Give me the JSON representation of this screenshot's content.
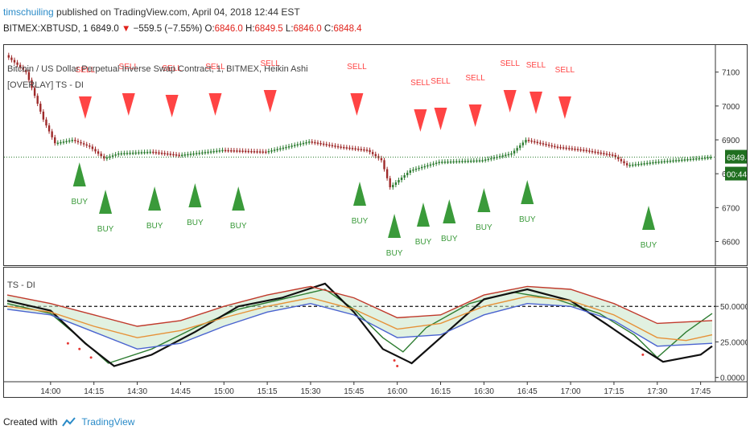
{
  "header": {
    "user": "timschuiling",
    "published": " published on TradingView.com, April 04, 2018 12:44 EST",
    "symbol": "BITMEX:XBTUSD, 1",
    "last": "6849.0",
    "change": "−559.5 (−7.55%)",
    "o_label": "O:",
    "o_val": "6846.0",
    "h_label": "H:",
    "h_val": "6849.5",
    "l_label": "L:",
    "l_val": "6846.0",
    "c_label": "C:",
    "c_val": "6848.4"
  },
  "pane1": {
    "title": "Bitcoin / US Dollar Perpetual Inverse Swap Contract, 1, BITMEX, Heikin Ashi",
    "overlay": "[OVERLAY] TS - DI",
    "price_tag": "6849.0",
    "timer_tag": "00:44"
  },
  "pane2": {
    "label": "TS - DI"
  },
  "footer": {
    "created": "Created with",
    "brand": "TradingView"
  },
  "colors": {
    "sell": "#ff4444",
    "buy": "#3a9a3a",
    "up": "#2e7d32",
    "down": "#9e2a2a"
  },
  "chart_data": [
    {
      "type": "candlestick",
      "x_ticks": [
        "14:00",
        "14:15",
        "14:30",
        "14:45",
        "15:00",
        "15:15",
        "15:30",
        "15:45",
        "16:00",
        "16:15",
        "16:30",
        "16:45",
        "17:00",
        "17:15",
        "17:30",
        "17:45"
      ],
      "y_ticks": [
        6600,
        6700,
        6800,
        6900,
        7000,
        7100
      ],
      "ylim": [
        6530,
        7180
      ],
      "x_range": [
        "13:45",
        "17:49"
      ],
      "price_path": [
        [
          "13:45",
          7150
        ],
        [
          "13:52",
          7100
        ],
        [
          "13:58",
          6960
        ],
        [
          "14:02",
          6890
        ],
        [
          "14:08",
          6900
        ],
        [
          "14:14",
          6880
        ],
        [
          "14:19",
          6845
        ],
        [
          "14:24",
          6860
        ],
        [
          "14:35",
          6865
        ],
        [
          "14:45",
          6855
        ],
        [
          "15:00",
          6870
        ],
        [
          "15:15",
          6865
        ],
        [
          "15:30",
          6895
        ],
        [
          "15:40",
          6880
        ],
        [
          "15:50",
          6870
        ],
        [
          "15:55",
          6840
        ],
        [
          "15:58",
          6760
        ],
        [
          "16:05",
          6810
        ],
        [
          "16:15",
          6835
        ],
        [
          "16:30",
          6840
        ],
        [
          "16:40",
          6860
        ],
        [
          "16:45",
          6900
        ],
        [
          "16:55",
          6880
        ],
        [
          "17:05",
          6870
        ],
        [
          "17:15",
          6855
        ],
        [
          "17:20",
          6825
        ],
        [
          "17:30",
          6835
        ],
        [
          "17:49",
          6849
        ]
      ],
      "signals": [
        {
          "t": "14:12",
          "kind": "SELL"
        },
        {
          "t": "14:27",
          "kind": "SELL"
        },
        {
          "t": "14:42",
          "kind": "SELL"
        },
        {
          "t": "14:57",
          "kind": "SELL"
        },
        {
          "t": "15:16",
          "kind": "SELL"
        },
        {
          "t": "15:46",
          "kind": "SELL"
        },
        {
          "t": "16:08",
          "kind": "SELL"
        },
        {
          "t": "16:15",
          "kind": "SELL"
        },
        {
          "t": "16:27",
          "kind": "SELL"
        },
        {
          "t": "16:39",
          "kind": "SELL"
        },
        {
          "t": "16:48",
          "kind": "SELL"
        },
        {
          "t": "16:58",
          "kind": "SELL"
        },
        {
          "t": "14:10",
          "kind": "BUY"
        },
        {
          "t": "14:19",
          "kind": "BUY"
        },
        {
          "t": "14:36",
          "kind": "BUY"
        },
        {
          "t": "14:50",
          "kind": "BUY"
        },
        {
          "t": "15:05",
          "kind": "BUY"
        },
        {
          "t": "15:47",
          "kind": "BUY"
        },
        {
          "t": "15:59",
          "kind": "BUY"
        },
        {
          "t": "16:09",
          "kind": "BUY"
        },
        {
          "t": "16:18",
          "kind": "BUY"
        },
        {
          "t": "16:30",
          "kind": "BUY"
        },
        {
          "t": "16:45",
          "kind": "BUY"
        },
        {
          "t": "17:27",
          "kind": "BUY"
        }
      ],
      "last_price": 6849.0
    },
    {
      "type": "line",
      "y_ticks": [
        0,
        25,
        50
      ],
      "ylim": [
        -3,
        75
      ],
      "reference_line": 50,
      "series": [
        {
          "color": "#2e7d32",
          "points": [
            [
              "13:45",
              52
            ],
            [
              "14:00",
              45
            ],
            [
              "14:10",
              28
            ],
            [
              "14:20",
              10
            ],
            [
              "14:35",
              20
            ],
            [
              "14:50",
              35
            ],
            [
              "15:05",
              48
            ],
            [
              "15:20",
              55
            ],
            [
              "15:35",
              62
            ],
            [
              "15:45",
              48
            ],
            [
              "15:55",
              28
            ],
            [
              "16:02",
              18
            ],
            [
              "16:10",
              35
            ],
            [
              "16:25",
              52
            ],
            [
              "16:40",
              60
            ],
            [
              "16:55",
              55
            ],
            [
              "17:10",
              45
            ],
            [
              "17:22",
              30
            ],
            [
              "17:30",
              14
            ],
            [
              "17:40",
              32
            ],
            [
              "17:49",
              45
            ]
          ]
        },
        {
          "color": "#111111",
          "points": [
            [
              "13:45",
              54
            ],
            [
              "14:00",
              47
            ],
            [
              "14:12",
              24
            ],
            [
              "14:22",
              8
            ],
            [
              "14:35",
              16
            ],
            [
              "14:50",
              32
            ],
            [
              "15:05",
              50
            ],
            [
              "15:20",
              56
            ],
            [
              "15:35",
              66
            ],
            [
              "15:45",
              46
            ],
            [
              "15:55",
              20
            ],
            [
              "16:05",
              10
            ],
            [
              "16:15",
              28
            ],
            [
              "16:30",
              55
            ],
            [
              "16:45",
              62
            ],
            [
              "17:00",
              54
            ],
            [
              "17:12",
              38
            ],
            [
              "17:25",
              20
            ],
            [
              "17:32",
              11
            ],
            [
              "17:45",
              16
            ],
            [
              "17:49",
              22
            ]
          ]
        },
        {
          "color": "#e69138",
          "points": [
            [
              "13:45",
              50
            ],
            [
              "14:00",
              46
            ],
            [
              "14:15",
              36
            ],
            [
              "14:30",
              28
            ],
            [
              "14:45",
              33
            ],
            [
              "15:00",
              42
            ],
            [
              "15:15",
              50
            ],
            [
              "15:30",
              56
            ],
            [
              "15:45",
              48
            ],
            [
              "16:00",
              34
            ],
            [
              "16:15",
              38
            ],
            [
              "16:30",
              50
            ],
            [
              "16:45",
              57
            ],
            [
              "17:00",
              54
            ],
            [
              "17:15",
              44
            ],
            [
              "17:30",
              28
            ],
            [
              "17:40",
              26
            ],
            [
              "17:49",
              30
            ]
          ]
        },
        {
          "color": "#4a63d0",
          "points": [
            [
              "13:45",
              48
            ],
            [
              "14:00",
              44
            ],
            [
              "14:15",
              32
            ],
            [
              "14:30",
              20
            ],
            [
              "14:45",
              24
            ],
            [
              "15:00",
              36
            ],
            [
              "15:15",
              46
            ],
            [
              "15:30",
              52
            ],
            [
              "15:45",
              44
            ],
            [
              "16:00",
              28
            ],
            [
              "16:15",
              30
            ],
            [
              "16:30",
              44
            ],
            [
              "16:45",
              52
            ],
            [
              "17:00",
              50
            ],
            [
              "17:15",
              40
            ],
            [
              "17:30",
              22
            ],
            [
              "17:49",
              24
            ]
          ]
        },
        {
          "color": "#c0392b",
          "points": [
            [
              "13:45",
              58
            ],
            [
              "14:00",
              52
            ],
            [
              "14:15",
              44
            ],
            [
              "14:30",
              36
            ],
            [
              "14:45",
              40
            ],
            [
              "15:00",
              50
            ],
            [
              "15:15",
              58
            ],
            [
              "15:30",
              64
            ],
            [
              "15:45",
              56
            ],
            [
              "16:00",
              42
            ],
            [
              "16:15",
              44
            ],
            [
              "16:30",
              58
            ],
            [
              "16:45",
              64
            ],
            [
              "17:00",
              62
            ],
            [
              "17:15",
              52
            ],
            [
              "17:30",
              38
            ],
            [
              "17:49",
              40
            ]
          ]
        }
      ]
    }
  ]
}
